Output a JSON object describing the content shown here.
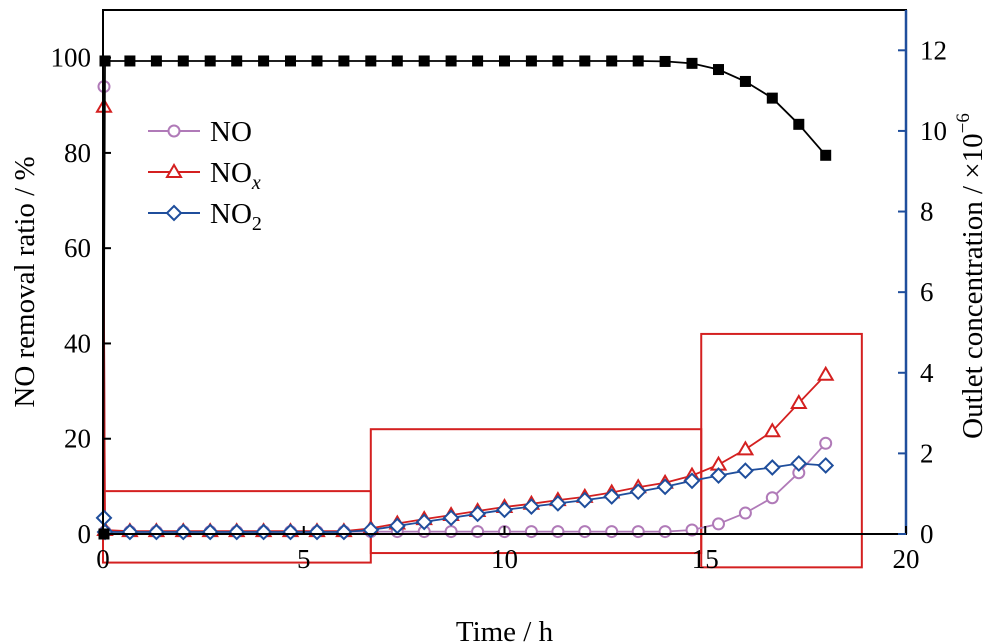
{
  "chart_data": {
    "type": "line",
    "xlabel": "Time / h",
    "ylabel_left": "NO removal ratio / %",
    "ylabel_right": "Outlet concentration / ×10",
    "ylabel_right_exp": "−6",
    "xlim": [
      0,
      20
    ],
    "ylim_left": [
      0,
      110
    ],
    "ylim_right": [
      0,
      13
    ],
    "x_ticks": [
      0,
      5,
      10,
      15,
      20
    ],
    "y_left_ticks": [
      0,
      20,
      40,
      60,
      80,
      100
    ],
    "y_right_ticks": [
      0,
      2,
      4,
      6,
      8,
      10,
      12
    ],
    "grid": false,
    "legend_position": "upper-left",
    "legend": [
      {
        "key": "NO",
        "label": "NO",
        "sub": "",
        "italic_sub": false
      },
      {
        "key": "NOx",
        "label": "NO",
        "sub": "x",
        "italic_sub": true
      },
      {
        "key": "NO2",
        "label": "NO",
        "sub": "2",
        "italic_sub": false
      }
    ],
    "series": [
      {
        "key": "removal",
        "axis": "left",
        "color": "#000000",
        "marker": "square",
        "x": [
          0,
          0.05,
          0.67,
          1.33,
          2.0,
          2.67,
          3.33,
          4.0,
          4.67,
          5.33,
          6.0,
          6.67,
          7.33,
          8.0,
          8.67,
          9.33,
          10.0,
          10.67,
          11.33,
          12.0,
          12.67,
          13.33,
          14.0,
          14.67,
          15.33,
          16.0,
          16.67,
          17.33,
          18.0
        ],
        "y": [
          0,
          99.3,
          99.3,
          99.3,
          99.3,
          99.3,
          99.3,
          99.3,
          99.3,
          99.3,
          99.3,
          99.3,
          99.3,
          99.3,
          99.3,
          99.3,
          99.3,
          99.3,
          99.3,
          99.3,
          99.3,
          99.3,
          99.2,
          98.8,
          97.5,
          95.0,
          91.5,
          86.0,
          79.5
        ]
      },
      {
        "key": "NO",
        "axis": "right",
        "color": "#b07ab8",
        "marker": "circle",
        "x": [
          0,
          0.05,
          0.67,
          1.33,
          2.0,
          2.67,
          3.33,
          4.0,
          4.67,
          5.33,
          6.0,
          6.67,
          7.33,
          8.0,
          8.67,
          9.33,
          10.0,
          10.67,
          11.33,
          12.0,
          12.67,
          13.33,
          14.0,
          14.67,
          15.33,
          16.0,
          16.67,
          17.33,
          18.0
        ],
        "y": [
          11.1,
          0.06,
          0.06,
          0.06,
          0.06,
          0.06,
          0.06,
          0.06,
          0.06,
          0.06,
          0.06,
          0.06,
          0.06,
          0.06,
          0.06,
          0.06,
          0.06,
          0.06,
          0.06,
          0.06,
          0.06,
          0.06,
          0.06,
          0.1,
          0.25,
          0.52,
          0.9,
          1.52,
          2.25
        ]
      },
      {
        "key": "NOx",
        "axis": "right",
        "color": "#d42020",
        "marker": "triangle",
        "x": [
          0,
          0.05,
          0.67,
          1.33,
          2.0,
          2.67,
          3.33,
          4.0,
          4.67,
          5.33,
          6.0,
          6.67,
          7.33,
          8.0,
          8.67,
          9.33,
          10.0,
          10.67,
          11.33,
          12.0,
          12.67,
          13.33,
          14.0,
          14.67,
          15.33,
          16.0,
          16.67,
          17.33,
          18.0
        ],
        "y": [
          10.6,
          0.1,
          0.07,
          0.07,
          0.07,
          0.07,
          0.07,
          0.07,
          0.07,
          0.07,
          0.07,
          0.14,
          0.26,
          0.37,
          0.47,
          0.57,
          0.67,
          0.75,
          0.84,
          0.92,
          1.03,
          1.16,
          1.27,
          1.45,
          1.72,
          2.1,
          2.55,
          3.25,
          3.95
        ]
      },
      {
        "key": "NO2",
        "axis": "right",
        "color": "#1f4e9c",
        "marker": "diamond",
        "x": [
          0,
          0.05,
          0.67,
          1.33,
          2.0,
          2.67,
          3.33,
          4.0,
          4.67,
          5.33,
          6.0,
          6.67,
          7.33,
          8.0,
          8.67,
          9.33,
          10.0,
          10.67,
          11.33,
          12.0,
          12.67,
          13.33,
          14.0,
          14.67,
          15.33,
          16.0,
          16.67,
          17.33,
          18.0
        ],
        "y": [
          0.4,
          0.05,
          0.05,
          0.05,
          0.05,
          0.05,
          0.05,
          0.05,
          0.05,
          0.05,
          0.05,
          0.1,
          0.2,
          0.3,
          0.4,
          0.5,
          0.6,
          0.68,
          0.76,
          0.84,
          0.93,
          1.05,
          1.17,
          1.32,
          1.45,
          1.57,
          1.65,
          1.75,
          1.7
        ]
      }
    ],
    "highlight_boxes": [
      {
        "x0": 0,
        "x1": 6.67,
        "y0_left": -6,
        "y1_left": 9
      },
      {
        "x0": 6.67,
        "x1": 14.9,
        "y0_left": -4,
        "y1_left": 22
      },
      {
        "x0": 14.9,
        "x1": 18.9,
        "y0_left": -7,
        "y1_left": 42
      }
    ],
    "highlight_color": "#d42020",
    "axis_color_left": "#000000",
    "axis_color_right": "#1f4e9c"
  }
}
